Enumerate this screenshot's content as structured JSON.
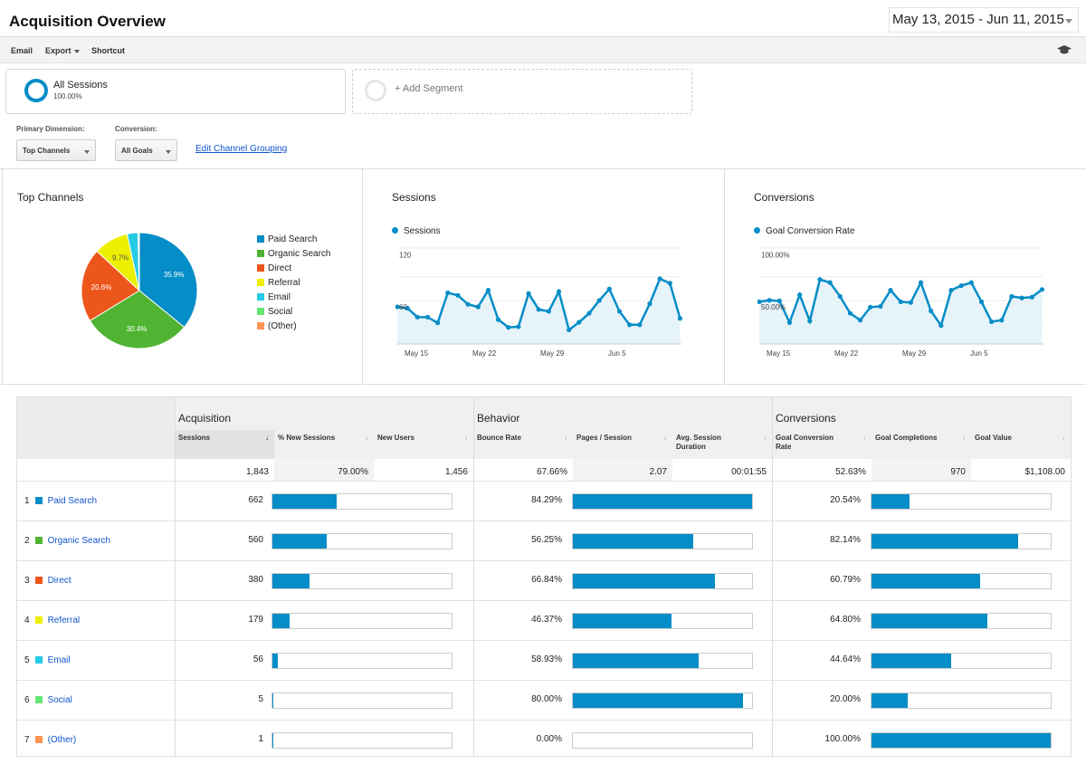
{
  "header": {
    "title": "Acquisition Overview",
    "date_range": "May 13, 2015 - Jun 11, 2015"
  },
  "toolbar": {
    "email": "Email",
    "export": "Export",
    "shortcut": "Shortcut"
  },
  "segments": {
    "all_sessions": {
      "name": "All Sessions",
      "pct": "100.00%"
    },
    "add_segment": "+ Add Segment"
  },
  "controls": {
    "primary_dimension_label": "Primary Dimension:",
    "primary_dimension_value": "Top Channels",
    "conversion_label": "Conversion:",
    "conversion_value": "All Goals",
    "edit_grouping": "Edit Channel Grouping"
  },
  "colors": {
    "accent": "#058dc7",
    "paid_search": "#058dc7",
    "organic_search": "#50b432",
    "direct": "#ed561b",
    "referral": "#edef00",
    "email": "#24cbe5",
    "social": "#64e572",
    "other": "#ff9655"
  },
  "panels": {
    "top_channels": {
      "title": "Top Channels"
    },
    "sessions": {
      "title": "Sessions",
      "legend": "Sessions"
    },
    "conversions": {
      "title": "Conversions",
      "legend": "Goal Conversion Rate"
    }
  },
  "chart_data": [
    {
      "type": "pie",
      "title": "Top Channels",
      "series": [
        {
          "name": "Paid Search",
          "value": 35.9,
          "label": "35.9%",
          "color": "#058dc7"
        },
        {
          "name": "Organic Search",
          "value": 30.4,
          "label": "30.4%",
          "color": "#50b432"
        },
        {
          "name": "Direct",
          "value": 20.6,
          "label": "20.6%",
          "color": "#ed561b"
        },
        {
          "name": "Referral",
          "value": 9.7,
          "label": "9.7%",
          "color": "#edef00"
        },
        {
          "name": "Email",
          "value": 3.0,
          "label": "",
          "color": "#24cbe5"
        },
        {
          "name": "Social",
          "value": 0.3,
          "label": "",
          "color": "#64e572"
        },
        {
          "name": "(Other)",
          "value": 0.1,
          "label": "",
          "color": "#ff9655"
        }
      ]
    },
    {
      "type": "area",
      "title": "Sessions",
      "series_name": "Sessions",
      "x_ticks": [
        "May 15",
        "May 22",
        "May 29",
        "Jun 5"
      ],
      "y_ticks": [
        "120",
        "60"
      ],
      "ylim": [
        0,
        150
      ],
      "values": [
        58,
        56,
        42,
        42,
        33,
        80,
        76,
        62,
        58,
        84,
        38,
        26,
        27,
        79,
        54,
        51,
        82,
        22,
        34,
        48,
        68,
        86,
        51,
        30,
        30,
        63,
        102,
        95,
        40
      ]
    },
    {
      "type": "area",
      "title": "Conversions",
      "series_name": "Goal Conversion Rate",
      "x_ticks": [
        "May 15",
        "May 22",
        "May 29",
        "Jun 5"
      ],
      "y_ticks": [
        "100.00%",
        "50.00%"
      ],
      "ylim": [
        0,
        125
      ],
      "values": [
        55,
        57,
        56,
        28,
        64,
        30,
        84,
        80,
        62,
        40,
        31,
        48,
        49,
        70,
        55,
        54,
        80,
        43,
        24,
        70,
        76,
        80,
        55,
        29,
        31,
        62,
        60,
        61,
        71
      ]
    }
  ],
  "table": {
    "groups": {
      "acquisition": "Acquisition",
      "behavior": "Behavior",
      "conversions": "Conversions"
    },
    "columns": {
      "sessions": "Sessions",
      "new_sessions": "% New Sessions",
      "new_users": "New Users",
      "bounce_rate": "Bounce Rate",
      "pages_session": "Pages / Session",
      "avg_duration": "Avg. Session Duration",
      "goal_conv_rate": "Goal Conversion Rate",
      "goal_completions": "Goal Completions",
      "goal_value": "Goal Value"
    },
    "totals": {
      "sessions": "1,843",
      "new_sessions": "79.00%",
      "new_users": "1,456",
      "bounce_rate": "67.66%",
      "pages_session": "2.07",
      "avg_duration": "00:01:55",
      "goal_conv_rate": "52.63%",
      "goal_completions": "970",
      "goal_value": "$1,108.00"
    },
    "rows": [
      {
        "idx": "1",
        "name": "Paid Search",
        "color": "#058dc7",
        "sessions": "662",
        "sessions_frac": 0.36,
        "bounce": "84.29%",
        "bounce_frac": 1.0,
        "conv": "20.54%",
        "conv_frac": 0.21
      },
      {
        "idx": "2",
        "name": "Organic Search",
        "color": "#50b432",
        "sessions": "560",
        "sessions_frac": 0.305,
        "bounce": "56.25%",
        "bounce_frac": 0.67,
        "conv": "82.14%",
        "conv_frac": 0.82
      },
      {
        "idx": "3",
        "name": "Direct",
        "color": "#ed561b",
        "sessions": "380",
        "sessions_frac": 0.205,
        "bounce": "66.84%",
        "bounce_frac": 0.793,
        "conv": "60.79%",
        "conv_frac": 0.608
      },
      {
        "idx": "4",
        "name": "Referral",
        "color": "#edef00",
        "sessions": "179",
        "sessions_frac": 0.097,
        "bounce": "46.37%",
        "bounce_frac": 0.55,
        "conv": "64.80%",
        "conv_frac": 0.648
      },
      {
        "idx": "5",
        "name": "Email",
        "color": "#24cbe5",
        "sessions": "56",
        "sessions_frac": 0.03,
        "bounce": "58.93%",
        "bounce_frac": 0.7,
        "conv": "44.64%",
        "conv_frac": 0.446
      },
      {
        "idx": "6",
        "name": "Social",
        "color": "#64e572",
        "sessions": "5",
        "sessions_frac": 0.003,
        "bounce": "80.00%",
        "bounce_frac": 0.95,
        "conv": "20.00%",
        "conv_frac": 0.2
      },
      {
        "idx": "7",
        "name": "(Other)",
        "color": "#ff9655",
        "sessions": "1",
        "sessions_frac": 0.001,
        "bounce": "0.00%",
        "bounce_frac": 0.0,
        "conv": "100.00%",
        "conv_frac": 1.0
      }
    ]
  }
}
